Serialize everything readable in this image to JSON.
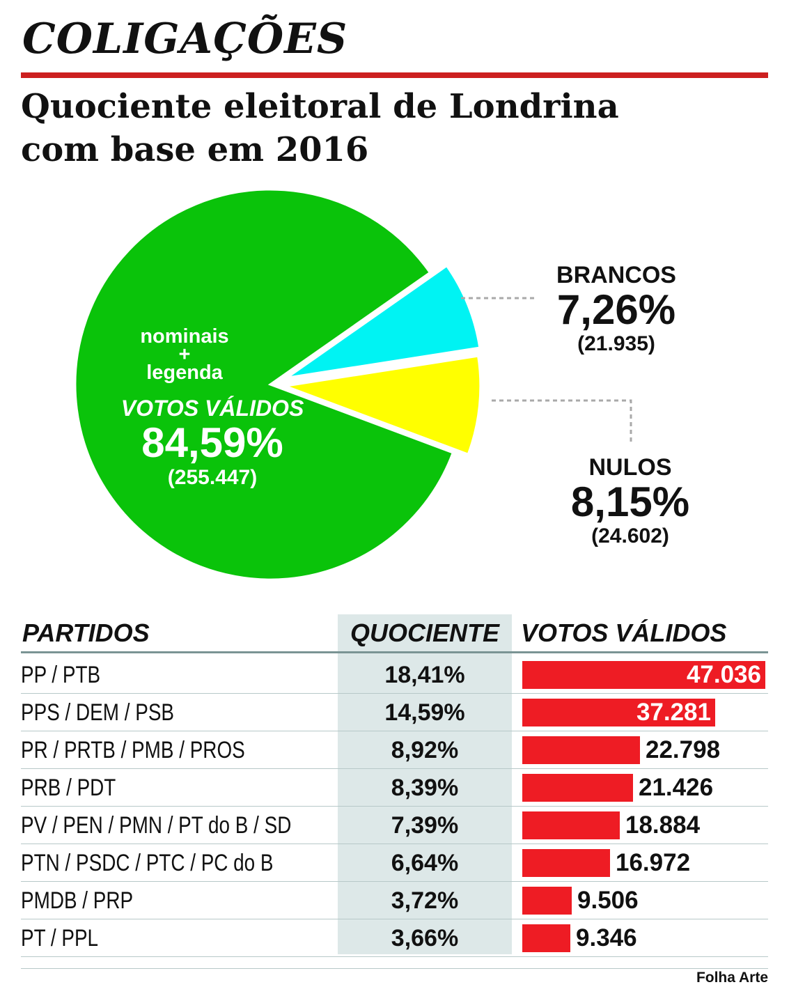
{
  "section_title": "COLIGAÇÕES",
  "chart_title_line1": "Quociente eleitoral de Londrina",
  "chart_title_line2": "com base em 2016",
  "colors": {
    "validos": "#0ac30a",
    "brancos": "#00f3f3",
    "nulos": "#ffff00",
    "bar": "#ee1c24",
    "rule": "#cc1f1f"
  },
  "chart_data": [
    {
      "type": "pie",
      "slices": [
        {
          "label": "VOTOS VÁLIDOS",
          "sublabel": "nominais + legenda",
          "percent": 84.59,
          "percent_text": "84,59%",
          "count_text": "(255.447)",
          "color": "#0ac30a"
        },
        {
          "label": "BRANCOS",
          "percent": 7.26,
          "percent_text": "7,26%",
          "count_text": "(21.935)",
          "color": "#00f3f3"
        },
        {
          "label": "NULOS",
          "percent": 8.15,
          "percent_text": "8,15%",
          "count_text": "(24.602)",
          "color": "#ffff00"
        }
      ]
    },
    {
      "type": "bar",
      "columns": [
        "PARTIDOS",
        "QUOCIENTE",
        "VOTOS VÁLIDOS"
      ],
      "categories": [
        "PP / PTB",
        "PPS / DEM / PSB",
        "PR / PRTB / PMB / PROS",
        "PRB / PDT",
        "PV / PEN / PMN / PT do B / SD",
        "PTN / PSDC / PTC / PC do B",
        "PMDB / PRP",
        "PT / PPL"
      ],
      "quociente": [
        "18,41%",
        "14,59%",
        "8,92%",
        "8,39%",
        "7,39%",
        "6,64%",
        "3,72%",
        "3,66%"
      ],
      "values": [
        47036,
        37281,
        22798,
        21426,
        18884,
        16972,
        9506,
        9346
      ],
      "value_labels": [
        "47.036",
        "37.281",
        "22.798",
        "21.426",
        "18.884",
        "16.972",
        "9.506",
        "9.346"
      ]
    }
  ],
  "pie_labels": {
    "validos_line1": "nominais",
    "validos_plus": "+",
    "validos_line2": "legenda"
  },
  "credit": "Folha Arte"
}
